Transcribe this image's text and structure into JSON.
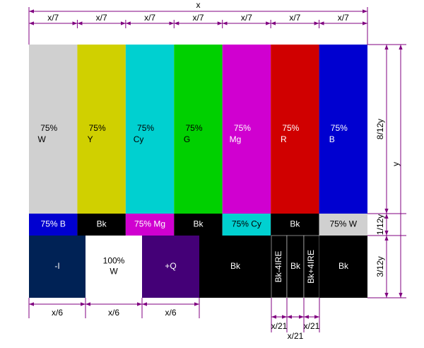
{
  "title": "x",
  "top_widths": [
    "x/7",
    "x/7",
    "x/7",
    "x/7",
    "x/7",
    "x/7",
    "x/7"
  ],
  "top_bars": [
    [
      "75%",
      "W"
    ],
    [
      "75%",
      "Y"
    ],
    [
      "75%",
      "Cy"
    ],
    [
      "75%",
      "G"
    ],
    [
      "75%",
      "Mg"
    ],
    [
      "75%",
      "R"
    ],
    [
      "75%",
      "B"
    ]
  ],
  "middle_bars": [
    "75%  B",
    "Bk",
    "75% Mg",
    "Bk",
    "75% Cy",
    "Bk",
    "75% W"
  ],
  "bottom_bars": [
    "-I",
    "100%\nW",
    "+Q",
    "Bk",
    "Bk-4IRE",
    "Bk",
    "Bk+4IRE",
    "Bk"
  ],
  "right_heights": [
    "8/12y",
    "1/12y",
    "3/12y"
  ],
  "total_height": "y",
  "bottom_widths_sixth": [
    "x/6",
    "x/6",
    "x/6"
  ],
  "bottom_widths_21": [
    "x/21",
    "x/21",
    "x/21"
  ]
}
